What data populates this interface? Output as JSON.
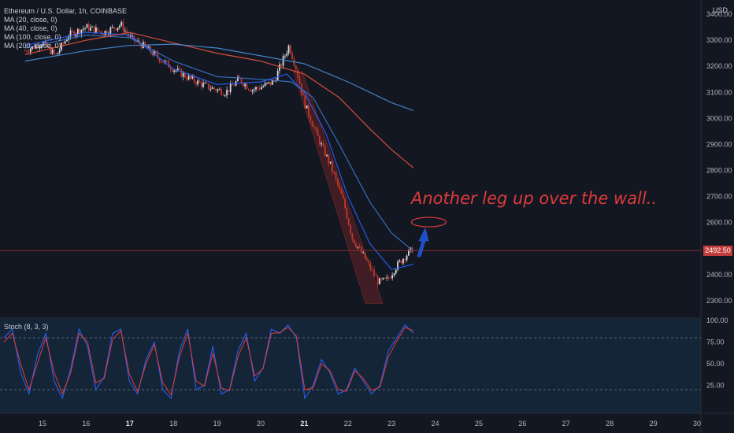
{
  "header": {
    "title": "Ethereum / U.S. Dollar, 1h, COINBASE",
    "indicators": [
      "MA (20, close, 0)",
      "MA (40, close, 0)",
      "MA (100, close, 0)",
      "MA (200, close, 0)"
    ]
  },
  "annotation": "Another leg up over the wall..",
  "currency": "USD",
  "last_price": "2492.50",
  "stoch_label": "Stoch (8, 3, 3)",
  "colors": {
    "background": "#131722",
    "up": "#d6d9e0",
    "down": "#c0392b",
    "ma20": "#2962ff",
    "ma40": "#3a78c9",
    "ma100": "#e8543b",
    "ma200": "#4a8fd9",
    "annotation": "#e03a3a",
    "stoch_k": "#2962ff",
    "stoch_d": "#e53935"
  },
  "chart_data": [
    {
      "type": "candlestick",
      "ylabel": "USD",
      "ylim": [
        2270,
        3410
      ],
      "yticks": [
        "3400.00",
        "3300.00",
        "3200.00",
        "3100.00",
        "3000.00",
        "2900.00",
        "2800.00",
        "2700.00",
        "2600.00",
        "2500.00",
        "2400.00",
        "2300.00"
      ],
      "xticks": [
        "15",
        "16",
        "17",
        "18",
        "19",
        "20",
        "21",
        "22",
        "23",
        "24",
        "25",
        "26",
        "27",
        "28",
        "29",
        "30"
      ],
      "bold_xticks": [
        "17",
        "21"
      ],
      "price_path": [
        {
          "day": 14.6,
          "price": 3260
        },
        {
          "day": 15.0,
          "price": 3290
        },
        {
          "day": 15.3,
          "price": 3240
        },
        {
          "day": 15.6,
          "price": 3320
        },
        {
          "day": 16.0,
          "price": 3350
        },
        {
          "day": 16.4,
          "price": 3330
        },
        {
          "day": 16.8,
          "price": 3360
        },
        {
          "day": 17.0,
          "price": 3310
        },
        {
          "day": 17.3,
          "price": 3280
        },
        {
          "day": 17.6,
          "price": 3240
        },
        {
          "day": 18.0,
          "price": 3190
        },
        {
          "day": 18.4,
          "price": 3150
        },
        {
          "day": 18.8,
          "price": 3120
        },
        {
          "day": 19.2,
          "price": 3100
        },
        {
          "day": 19.5,
          "price": 3150
        },
        {
          "day": 19.8,
          "price": 3110
        },
        {
          "day": 20.0,
          "price": 3120
        },
        {
          "day": 20.3,
          "price": 3140
        },
        {
          "day": 20.5,
          "price": 3220
        },
        {
          "day": 20.65,
          "price": 3280
        },
        {
          "day": 20.8,
          "price": 3200
        },
        {
          "day": 21.0,
          "price": 3060
        },
        {
          "day": 21.3,
          "price": 2930
        },
        {
          "day": 21.6,
          "price": 2820
        },
        {
          "day": 21.9,
          "price": 2680
        },
        {
          "day": 22.1,
          "price": 2540
        },
        {
          "day": 22.4,
          "price": 2460
        },
        {
          "day": 22.7,
          "price": 2370
        },
        {
          "day": 22.9,
          "price": 2380
        },
        {
          "day": 23.1,
          "price": 2430
        },
        {
          "day": 23.3,
          "price": 2470
        },
        {
          "day": 23.5,
          "price": 2500
        }
      ],
      "series": [
        {
          "name": "MA (20, close, 0)",
          "points": [
            [
              14.6,
              3280
            ],
            [
              16,
              3330
            ],
            [
              17,
              3320
            ],
            [
              18,
              3190
            ],
            [
              19,
              3130
            ],
            [
              20,
              3140
            ],
            [
              20.6,
              3170
            ],
            [
              21,
              3100
            ],
            [
              21.5,
              2940
            ],
            [
              22,
              2700
            ],
            [
              22.5,
              2520
            ],
            [
              23,
              2420
            ],
            [
              23.5,
              2440
            ]
          ]
        },
        {
          "name": "MA (40, close, 0)",
          "points": [
            [
              14.6,
              3270
            ],
            [
              16,
              3320
            ],
            [
              17,
              3310
            ],
            [
              18,
              3220
            ],
            [
              19,
              3160
            ],
            [
              20,
              3150
            ],
            [
              20.7,
              3140
            ],
            [
              21.2,
              3080
            ],
            [
              21.8,
              2900
            ],
            [
              22.5,
              2680
            ],
            [
              23,
              2560
            ],
            [
              23.5,
              2490
            ]
          ]
        },
        {
          "name": "MA (100, close, 0)",
          "points": [
            [
              14.6,
              3245
            ],
            [
              16,
              3300
            ],
            [
              17,
              3330
            ],
            [
              18,
              3290
            ],
            [
              19,
              3250
            ],
            [
              20,
              3220
            ],
            [
              21,
              3170
            ],
            [
              21.8,
              3080
            ],
            [
              22.5,
              2960
            ],
            [
              23,
              2880
            ],
            [
              23.5,
              2810
            ]
          ]
        },
        {
          "name": "MA (200, close, 0)",
          "points": [
            [
              14.6,
              3220
            ],
            [
              16,
              3260
            ],
            [
              17,
              3280
            ],
            [
              18,
              3285
            ],
            [
              19,
              3270
            ],
            [
              20,
              3240
            ],
            [
              21,
              3210
            ],
            [
              22,
              3140
            ],
            [
              23,
              3060
            ],
            [
              23.5,
              3030
            ]
          ]
        }
      ]
    },
    {
      "type": "line",
      "title": "Stoch (8, 3, 3)",
      "ylim": [
        0,
        100
      ],
      "yticks": [
        "100.00",
        "75.00",
        "50.00",
        "25.00"
      ],
      "bands": [
        20,
        80
      ],
      "series": [
        {
          "name": "%K",
          "values": [
            80,
            90,
            40,
            15,
            60,
            85,
            30,
            10,
            45,
            90,
            70,
            20,
            35,
            85,
            90,
            30,
            15,
            55,
            75,
            20,
            10,
            65,
            90,
            20,
            25,
            70,
            15,
            20,
            65,
            85,
            30,
            45,
            90,
            85,
            95,
            80,
            10,
            25,
            55,
            40,
            15,
            20,
            45,
            30,
            15,
            25,
            65,
            80,
            95,
            85
          ]
        },
        {
          "name": "%D",
          "values": [
            75,
            85,
            50,
            20,
            50,
            80,
            40,
            15,
            40,
            85,
            75,
            28,
            33,
            78,
            88,
            38,
            18,
            50,
            72,
            28,
            14,
            58,
            85,
            30,
            24,
            62,
            22,
            19,
            58,
            80,
            36,
            44,
            85,
            86,
            92,
            82,
            20,
            22,
            50,
            42,
            20,
            18,
            42,
            33,
            19,
            23,
            58,
            76,
            92,
            88
          ]
        }
      ]
    }
  ]
}
